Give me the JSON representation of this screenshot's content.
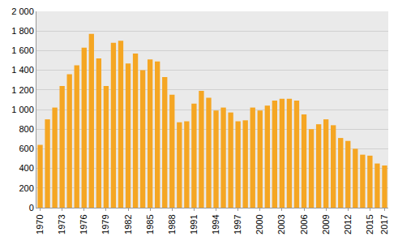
{
  "chart_data": {
    "type": "bar",
    "categories": [
      "1970",
      null,
      null,
      "1973",
      null,
      null,
      "1976",
      null,
      null,
      "1979",
      null,
      null,
      "1982",
      null,
      null,
      "1985",
      null,
      null,
      "1988",
      null,
      null,
      "1991",
      null,
      null,
      "1994",
      null,
      null,
      "1997",
      null,
      null,
      "2000",
      null,
      null,
      "2003",
      null,
      null,
      "2006",
      null,
      null,
      "2009",
      null,
      null,
      "2012",
      null,
      null,
      "2015",
      null,
      "2017"
    ],
    "values": [
      640,
      900,
      1020,
      1240,
      1360,
      1450,
      1630,
      1770,
      1520,
      1240,
      1680,
      1700,
      1470,
      1570,
      1400,
      1510,
      1490,
      1330,
      1150,
      870,
      880,
      1060,
      1190,
      1120,
      990,
      1020,
      970,
      880,
      890,
      1020,
      990,
      1040,
      1090,
      1110,
      1110,
      1090,
      950,
      800,
      850,
      900,
      840,
      710,
      680,
      600,
      540,
      530,
      450,
      430
    ],
    "color": "#f5a623",
    "ylim": [
      0,
      2000
    ],
    "yticks": [
      0,
      200,
      400,
      600,
      800,
      {
        "value": 1000,
        "label": "1 000"
      },
      {
        "value": 1200,
        "label": "1 200"
      },
      {
        "value": 1400,
        "label": "1 400"
      },
      {
        "value": 1600,
        "label": "1 600"
      },
      {
        "value": 1800,
        "label": "1 800"
      },
      {
        "value": 2000,
        "label": "2 000"
      }
    ],
    "grid": true
  }
}
